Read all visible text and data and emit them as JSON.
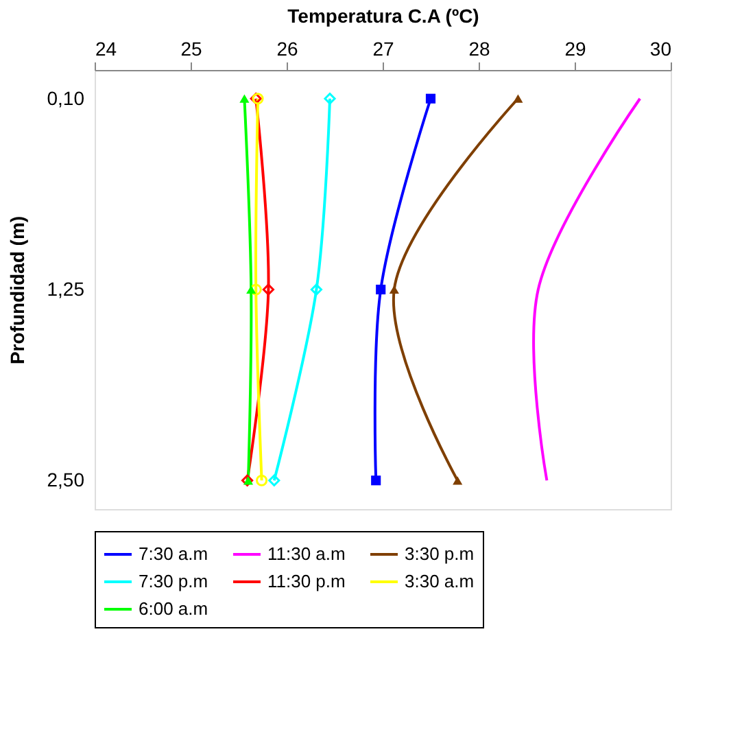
{
  "chart_data": {
    "type": "line",
    "orientation": "horizontal",
    "xlabel": "Temperatura C.A (ºC)",
    "ylabel": "Profundidad (m)",
    "categories": [
      "0,10",
      "1,25",
      "2,50"
    ],
    "xlim": [
      24,
      30
    ],
    "xticks": [
      24,
      25,
      26,
      27,
      28,
      29,
      30
    ],
    "grid": false,
    "legend": "bottom",
    "series": [
      {
        "name": "7:30 a.m",
        "color": "#0000ff",
        "marker": "square",
        "values": [
          27.5,
          26.98,
          26.93
        ]
      },
      {
        "name": "11:30 a.m",
        "color": "#ff00ff",
        "marker": "none",
        "values": [
          29.68,
          28.62,
          28.71
        ]
      },
      {
        "name": "3:30 p.m",
        "color": "#7f3f00",
        "marker": "triangle",
        "values": [
          28.41,
          27.12,
          27.78
        ]
      },
      {
        "name": "7:30 p.m",
        "color": "#00ffff",
        "marker": "diamond",
        "values": [
          26.45,
          26.31,
          25.87
        ]
      },
      {
        "name": "11:30 p.m",
        "color": "#ff0000",
        "marker": "diamond",
        "values": [
          25.68,
          25.81,
          25.59
        ]
      },
      {
        "name": "3:30 a.m",
        "color": "#ffff00",
        "marker": "circle",
        "values": [
          25.7,
          25.68,
          25.74
        ]
      },
      {
        "name": "6:00 a.m",
        "color": "#00ff00",
        "marker": "triangle",
        "values": [
          25.56,
          25.63,
          25.6
        ]
      }
    ]
  }
}
